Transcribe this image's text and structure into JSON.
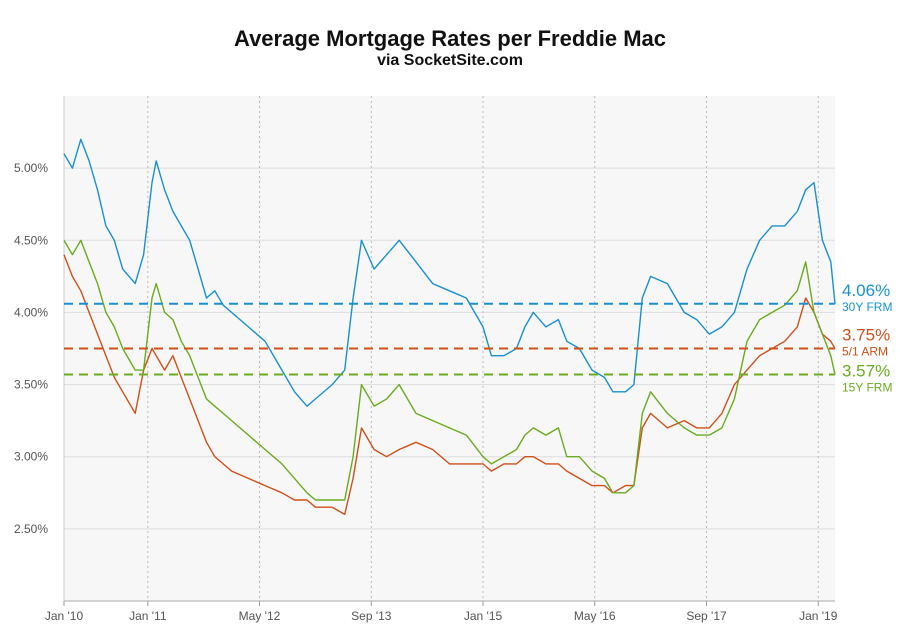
{
  "chart_data": {
    "type": "line",
    "title": "Average Mortgage Rates per Freddie Mac",
    "subtitle": "via SocketSite.com",
    "x_labels": [
      "Jan '10",
      "Jan '11",
      "May '12",
      "Sep '13",
      "Jan '15",
      "May '16",
      "Sep '17",
      "Jan '19"
    ],
    "x_label_dates": [
      2010.0,
      2011.0,
      2012.333,
      2013.667,
      2015.0,
      2016.333,
      2017.667,
      2019.0
    ],
    "xlim": [
      2010.0,
      2019.2
    ],
    "y_ticks": [
      "2.50%",
      "3.00%",
      "3.50%",
      "4.00%",
      "4.50%",
      "5.00%"
    ],
    "y_tick_values": [
      2.5,
      3.0,
      3.5,
      4.0,
      4.5,
      5.0
    ],
    "ylim": [
      2.0,
      5.5
    ],
    "grid": true,
    "series": [
      {
        "name": "30Y FRM",
        "color": "#1a90d0",
        "end_value": "4.06%",
        "ref_line": 4.06,
        "x": [
          2010.0,
          2010.1,
          2010.2,
          2010.3,
          2010.4,
          2010.5,
          2010.6,
          2010.7,
          2010.85,
          2010.95,
          2011.05,
          2011.1,
          2011.2,
          2011.3,
          2011.4,
          2011.5,
          2011.6,
          2011.7,
          2011.8,
          2011.9,
          2012.0,
          2012.2,
          2012.4,
          2012.6,
          2012.75,
          2012.9,
          2013.0,
          2013.2,
          2013.35,
          2013.45,
          2013.55,
          2013.7,
          2013.85,
          2014.0,
          2014.2,
          2014.4,
          2014.6,
          2014.8,
          2015.0,
          2015.1,
          2015.25,
          2015.4,
          2015.5,
          2015.6,
          2015.75,
          2015.9,
          2016.0,
          2016.15,
          2016.3,
          2016.45,
          2016.55,
          2016.7,
          2016.8,
          2016.9,
          2017.0,
          2017.2,
          2017.4,
          2017.55,
          2017.7,
          2017.85,
          2018.0,
          2018.15,
          2018.3,
          2018.45,
          2018.6,
          2018.75,
          2018.85,
          2018.95,
          2019.05,
          2019.15,
          2019.2
        ],
        "y": [
          5.1,
          5.0,
          5.2,
          5.05,
          4.85,
          4.6,
          4.5,
          4.3,
          4.2,
          4.4,
          4.9,
          5.05,
          4.85,
          4.7,
          4.6,
          4.5,
          4.3,
          4.1,
          4.15,
          4.05,
          4.0,
          3.9,
          3.8,
          3.6,
          3.45,
          3.35,
          3.4,
          3.5,
          3.6,
          4.1,
          4.5,
          4.3,
          4.4,
          4.5,
          4.35,
          4.2,
          4.15,
          4.1,
          3.9,
          3.7,
          3.7,
          3.75,
          3.9,
          4.0,
          3.9,
          3.95,
          3.8,
          3.75,
          3.6,
          3.55,
          3.45,
          3.45,
          3.5,
          4.1,
          4.25,
          4.2,
          4.0,
          3.95,
          3.85,
          3.9,
          4.0,
          4.3,
          4.5,
          4.6,
          4.6,
          4.7,
          4.85,
          4.9,
          4.5,
          4.35,
          4.06
        ]
      },
      {
        "name": "5/1 ARM",
        "color": "#d0501a",
        "end_value": "3.75%",
        "ref_line": 3.75,
        "x": [
          2010.0,
          2010.1,
          2010.2,
          2010.3,
          2010.4,
          2010.5,
          2010.6,
          2010.7,
          2010.85,
          2010.95,
          2011.05,
          2011.1,
          2011.2,
          2011.3,
          2011.4,
          2011.5,
          2011.6,
          2011.7,
          2011.8,
          2011.9,
          2012.0,
          2012.2,
          2012.4,
          2012.6,
          2012.75,
          2012.9,
          2013.0,
          2013.2,
          2013.35,
          2013.45,
          2013.55,
          2013.7,
          2013.85,
          2014.0,
          2014.2,
          2014.4,
          2014.6,
          2014.8,
          2015.0,
          2015.1,
          2015.25,
          2015.4,
          2015.5,
          2015.6,
          2015.75,
          2015.9,
          2016.0,
          2016.15,
          2016.3,
          2016.45,
          2016.55,
          2016.7,
          2016.8,
          2016.9,
          2017.0,
          2017.2,
          2017.4,
          2017.55,
          2017.7,
          2017.85,
          2018.0,
          2018.15,
          2018.3,
          2018.45,
          2018.6,
          2018.75,
          2018.85,
          2018.95,
          2019.05,
          2019.15,
          2019.2
        ],
        "y": [
          4.4,
          4.25,
          4.15,
          4.0,
          3.85,
          3.7,
          3.55,
          3.45,
          3.3,
          3.6,
          3.75,
          3.7,
          3.6,
          3.7,
          3.55,
          3.4,
          3.25,
          3.1,
          3.0,
          2.95,
          2.9,
          2.85,
          2.8,
          2.75,
          2.7,
          2.7,
          2.65,
          2.65,
          2.6,
          2.85,
          3.2,
          3.05,
          3.0,
          3.05,
          3.1,
          3.05,
          2.95,
          2.95,
          2.95,
          2.9,
          2.95,
          2.95,
          3.0,
          3.0,
          2.95,
          2.95,
          2.9,
          2.85,
          2.8,
          2.8,
          2.75,
          2.8,
          2.8,
          3.2,
          3.3,
          3.2,
          3.25,
          3.2,
          3.2,
          3.3,
          3.5,
          3.6,
          3.7,
          3.75,
          3.8,
          3.9,
          4.1,
          4.0,
          3.85,
          3.8,
          3.75
        ]
      },
      {
        "name": "15Y FRM",
        "color": "#6aab1f",
        "end_value": "3.57%",
        "ref_line": 3.57,
        "x": [
          2010.0,
          2010.1,
          2010.2,
          2010.3,
          2010.4,
          2010.5,
          2010.6,
          2010.7,
          2010.85,
          2010.95,
          2011.05,
          2011.1,
          2011.2,
          2011.3,
          2011.4,
          2011.5,
          2011.6,
          2011.7,
          2011.8,
          2011.9,
          2012.0,
          2012.2,
          2012.4,
          2012.6,
          2012.75,
          2012.9,
          2013.0,
          2013.2,
          2013.35,
          2013.45,
          2013.55,
          2013.7,
          2013.85,
          2014.0,
          2014.2,
          2014.4,
          2014.6,
          2014.8,
          2015.0,
          2015.1,
          2015.25,
          2015.4,
          2015.5,
          2015.6,
          2015.75,
          2015.9,
          2016.0,
          2016.15,
          2016.3,
          2016.45,
          2016.55,
          2016.7,
          2016.8,
          2016.9,
          2017.0,
          2017.2,
          2017.4,
          2017.55,
          2017.7,
          2017.85,
          2018.0,
          2018.15,
          2018.3,
          2018.45,
          2018.6,
          2018.75,
          2018.85,
          2018.95,
          2019.05,
          2019.15,
          2019.2
        ],
        "y": [
          4.5,
          4.4,
          4.5,
          4.35,
          4.2,
          4.0,
          3.9,
          3.75,
          3.6,
          3.6,
          4.1,
          4.2,
          4.0,
          3.95,
          3.8,
          3.7,
          3.55,
          3.4,
          3.35,
          3.3,
          3.25,
          3.15,
          3.05,
          2.95,
          2.85,
          2.75,
          2.7,
          2.7,
          2.7,
          3.0,
          3.5,
          3.35,
          3.4,
          3.5,
          3.3,
          3.25,
          3.2,
          3.15,
          3.0,
          2.95,
          3.0,
          3.05,
          3.15,
          3.2,
          3.15,
          3.2,
          3.0,
          3.0,
          2.9,
          2.85,
          2.75,
          2.75,
          2.8,
          3.3,
          3.45,
          3.3,
          3.2,
          3.15,
          3.15,
          3.2,
          3.4,
          3.8,
          3.95,
          4.0,
          4.05,
          4.15,
          4.35,
          4.0,
          3.85,
          3.7,
          3.57
        ]
      }
    ]
  }
}
